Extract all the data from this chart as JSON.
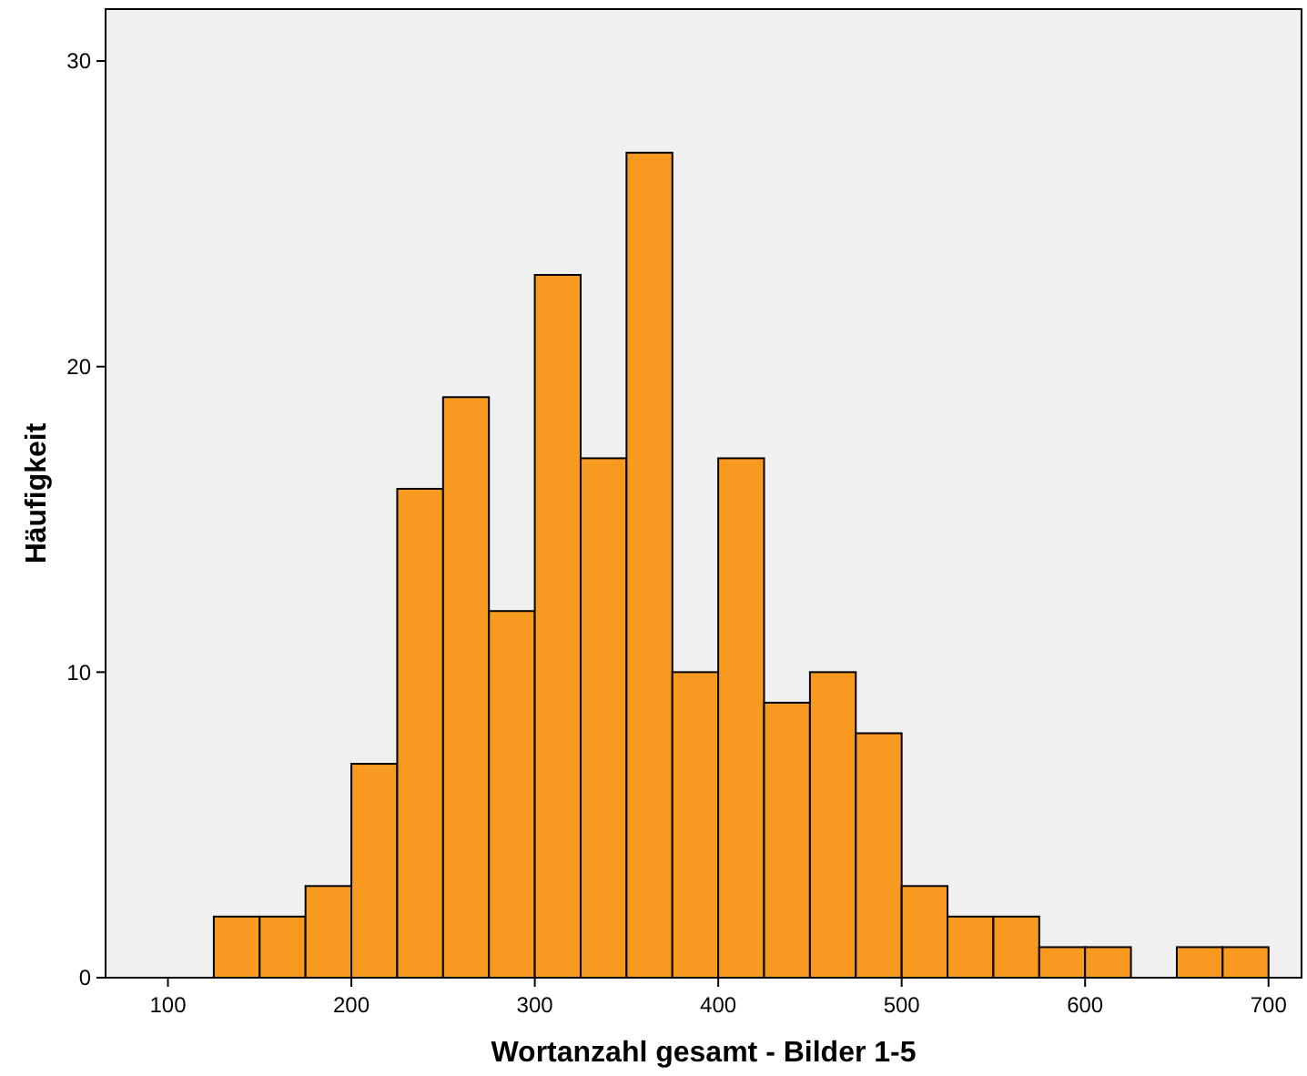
{
  "chart_data": {
    "type": "histogram",
    "xlabel": "Wortanzahl gesamt - Bilder 1-5",
    "ylabel": "Häufigkeit",
    "bins": [
      125,
      150,
      175,
      200,
      225,
      250,
      275,
      300,
      325,
      350,
      375,
      400,
      425,
      450,
      475,
      500,
      525,
      550,
      575,
      600,
      625,
      650,
      675,
      700
    ],
    "values": [
      2,
      2,
      3,
      7,
      16,
      19,
      12,
      23,
      17,
      27,
      10,
      17,
      9,
      10,
      8,
      3,
      2,
      2,
      1,
      1,
      0,
      1,
      1
    ],
    "color": "#f89a1f",
    "xlim": [
      66,
      718
    ],
    "ylim": [
      0,
      31.7
    ],
    "xticks": [
      100,
      200,
      300,
      400,
      500,
      600,
      700
    ],
    "yticks": [
      0,
      10,
      20,
      30
    ],
    "grid": false
  }
}
